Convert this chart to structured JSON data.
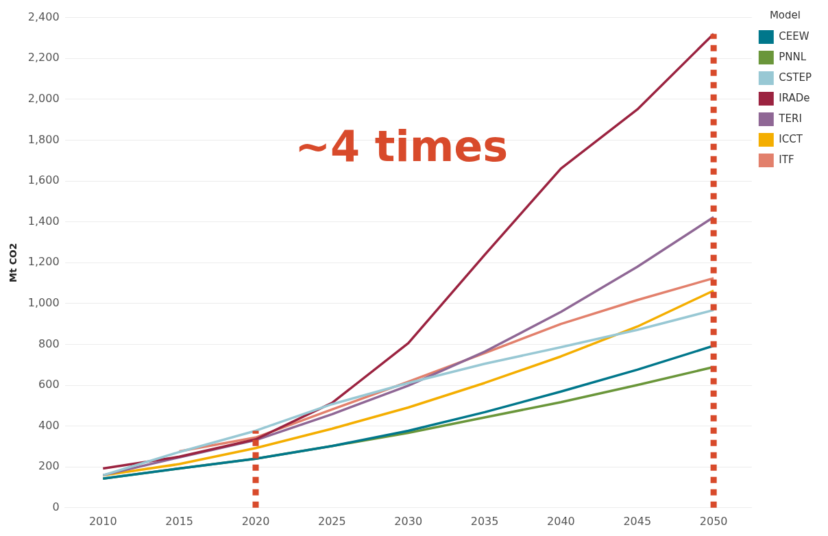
{
  "chart_data": {
    "type": "line",
    "ylabel": "Mt CO2",
    "legend_title": "Model",
    "legend": "top right",
    "grid": "y",
    "line_style": "solid",
    "marker": "none",
    "x": [
      2010,
      2015,
      2020,
      2025,
      2030,
      2035,
      2040,
      2045,
      2050
    ],
    "xlim": [
      2007.5,
      2052.5
    ],
    "xticks": [
      2010,
      2015,
      2020,
      2025,
      2030,
      2035,
      2040,
      2045,
      2050
    ],
    "ylim": [
      0,
      2400
    ],
    "yticks": [
      0,
      {
        "value": 200,
        "label": "200"
      },
      {
        "value": 400,
        "label": "400"
      },
      {
        "value": 600,
        "label": "600"
      },
      {
        "value": 800,
        "label": "800"
      },
      {
        "value": 1000,
        "label": "1,000"
      },
      {
        "value": 1200,
        "label": "1,200"
      },
      {
        "value": 1400,
        "label": "1,400"
      },
      {
        "value": 1600,
        "label": "1,600"
      },
      {
        "value": 1800,
        "label": "1,800"
      },
      {
        "value": 2000,
        "label": "2,000"
      },
      {
        "value": 2200,
        "label": "2,200"
      },
      {
        "value": 2400,
        "label": "2,400"
      }
    ],
    "annotations": [
      "~4 times"
    ],
    "series": [
      {
        "name": "CEEW",
        "color": "#00778b",
        "values": [
          143,
          192,
          240,
          302,
          377,
          468,
          569,
          676,
          793
        ]
      },
      {
        "name": "PNNL",
        "color": "#6a963a",
        "values": [
          143,
          192,
          240,
          302,
          367,
          442,
          517,
          601,
          689
        ]
      },
      {
        "name": "CSTEP",
        "color": "#98c8d4",
        "values": [
          159,
          273,
          377,
          507,
          611,
          705,
          786,
          871,
          968
        ]
      },
      {
        "name": "IRADe",
        "color": "#9b2340",
        "values": [
          192,
          250,
          335,
          513,
          806,
          1238,
          1661,
          1950,
          2320
        ]
      },
      {
        "name": "TERI",
        "color": "#8f6795",
        "values": [
          159,
          247,
          331,
          458,
          598,
          764,
          959,
          1180,
          1423
        ]
      },
      {
        "name": "ICCT",
        "color": "#f4ae00",
        "values": [
          159,
          214,
          292,
          387,
          491,
          611,
          741,
          887,
          1063
        ]
      },
      {
        "name": "ITF",
        "color": "#e2806c",
        "values": [
          null,
          276,
          344,
          481,
          617,
          757,
          900,
          1017,
          1124
        ]
      }
    ],
    "ref_lines": [
      {
        "axis": "x",
        "value": 2020,
        "color": "#d84a2b",
        "line_style": "dotted"
      },
      {
        "axis": "x",
        "value": 2050,
        "color": "#d84a2b",
        "line_style": "dotted"
      }
    ]
  }
}
